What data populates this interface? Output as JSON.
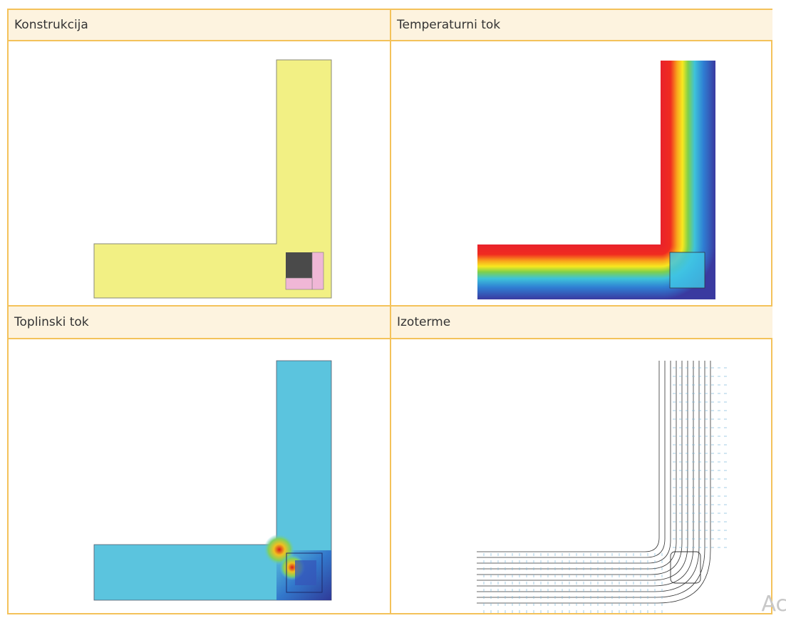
{
  "panels": {
    "top_left": {
      "title": "Konstrukcija"
    },
    "top_right": {
      "title": "Temperaturni tok"
    },
    "bottom_left": {
      "title": "Toplinski tok"
    },
    "bottom_right": {
      "title": "Izoterme"
    }
  },
  "watermark": "Ac",
  "colors": {
    "border": "#f4c25a",
    "header_bg": "#fdf3df",
    "wall": "#f2f084",
    "column": "#4a4a4a",
    "insulation": "#f0b7d6",
    "heatflow_base": "#5bc4de"
  }
}
